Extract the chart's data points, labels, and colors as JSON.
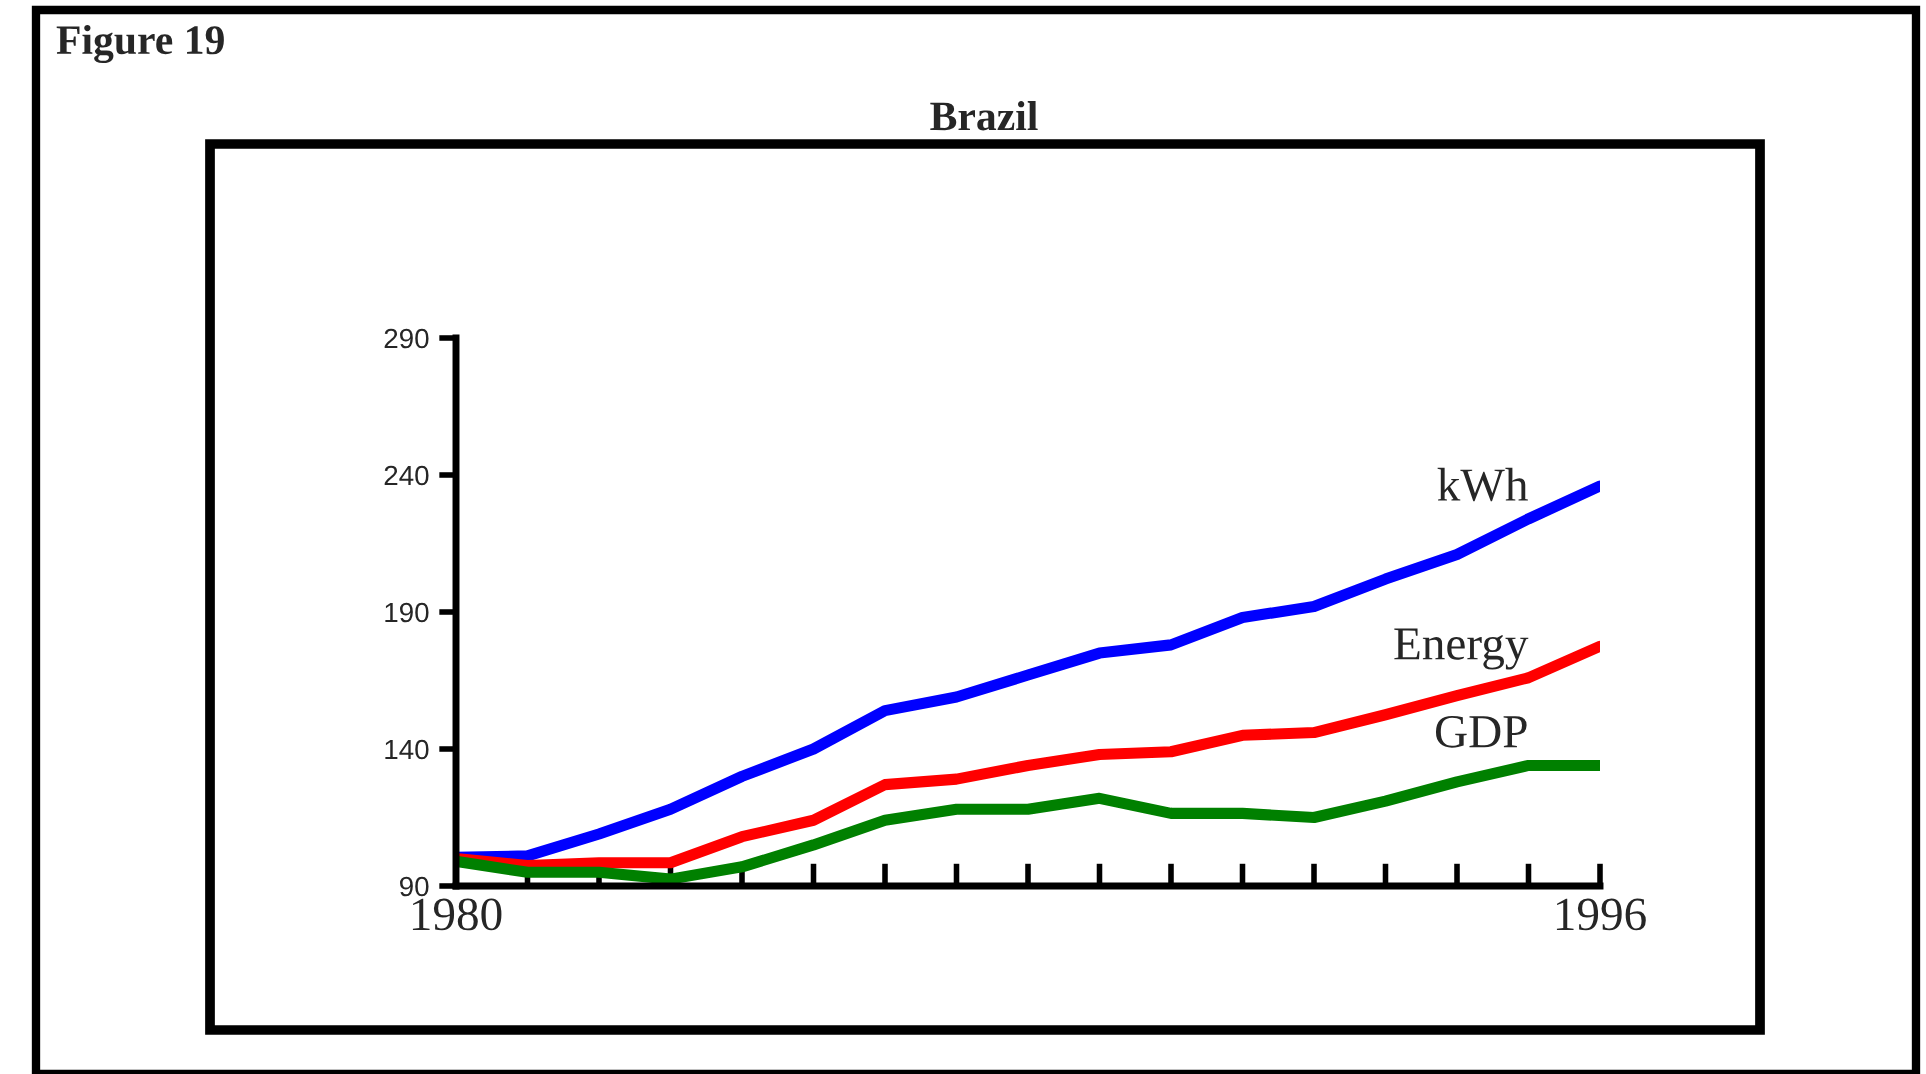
{
  "chart_data": {
    "type": "line",
    "title": "Brazil",
    "annotations": [
      "Figure 19"
    ],
    "x": [
      1980,
      1981,
      1982,
      1983,
      1984,
      1985,
      1986,
      1987,
      1988,
      1989,
      1990,
      1991,
      1992,
      1993,
      1994,
      1995,
      1996
    ],
    "series": [
      {
        "name": "kWh",
        "color": "#0000ff",
        "values": [
          100.5,
          101,
          109,
          118,
          130,
          140,
          154,
          159,
          167,
          175,
          178,
          188,
          192,
          202,
          211,
          224,
          236
        ]
      },
      {
        "name": "Energy",
        "color": "#ff0000",
        "values": [
          100,
          97.5,
          98.5,
          98.5,
          108,
          114,
          127,
          129,
          134,
          138,
          139,
          145,
          146,
          152.5,
          159.5,
          166,
          177.5
        ]
      },
      {
        "name": "GDP",
        "color": "#008000",
        "values": [
          99,
          95,
          95,
          92.5,
          97,
          105,
          114,
          118,
          118,
          122,
          116.5,
          116.5,
          115,
          121,
          128,
          134,
          134
        ]
      }
    ],
    "xlim": [
      1980,
      1996
    ],
    "xticks": [
      {
        "value": 1980,
        "label": "1980"
      },
      {
        "value": 1981,
        "label": null
      },
      {
        "value": 1982,
        "label": null
      },
      {
        "value": 1983,
        "label": null
      },
      {
        "value": 1984,
        "label": null
      },
      {
        "value": 1985,
        "label": null
      },
      {
        "value": 1986,
        "label": null
      },
      {
        "value": 1987,
        "label": null
      },
      {
        "value": 1988,
        "label": null
      },
      {
        "value": 1989,
        "label": null
      },
      {
        "value": 1990,
        "label": null
      },
      {
        "value": 1991,
        "label": null
      },
      {
        "value": 1992,
        "label": null
      },
      {
        "value": 1993,
        "label": null
      },
      {
        "value": 1994,
        "label": null
      },
      {
        "value": 1995,
        "label": null
      },
      {
        "value": 1996,
        "label": "1996"
      }
    ],
    "ylim": [
      90,
      290
    ],
    "yticks": [
      90,
      140,
      190,
      240,
      290
    ],
    "grid": false,
    "legend": false,
    "marker": "none",
    "line_style": "solid"
  }
}
